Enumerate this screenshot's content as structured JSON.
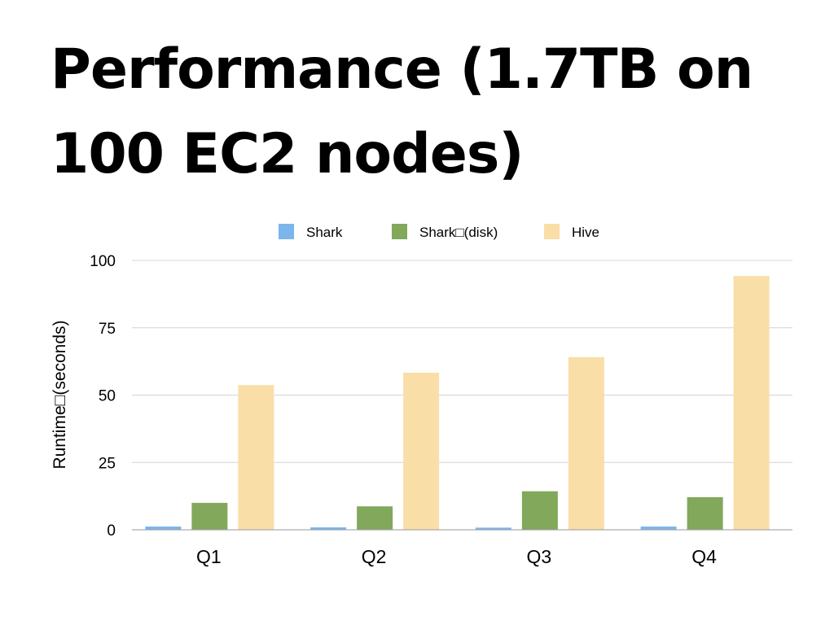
{
  "slide": {
    "title": "Performance (1.7TB on 100 EC2 nodes)"
  },
  "chart_data": {
    "type": "bar",
    "title": "",
    "xlabel": "",
    "ylabel": "Runtime□(seconds)",
    "ylim": [
      0,
      100
    ],
    "yticks": [
      0,
      25,
      50,
      75,
      100
    ],
    "grid": true,
    "legend_position": "top",
    "categories": [
      "Q1",
      "Q2",
      "Q3",
      "Q4"
    ],
    "series": [
      {
        "name": "Shark",
        "color": "#7cb5ec",
        "values": [
          1.2,
          0.9,
          0.8,
          1.2
        ]
      },
      {
        "name": "Shark□(disk)",
        "color": "#82a85c",
        "values": [
          10,
          8.7,
          14.3,
          12.1
        ]
      },
      {
        "name": "Hive",
        "color": "#f9dea8",
        "values": [
          53.7,
          58.3,
          64.1,
          94.2
        ]
      }
    ]
  }
}
